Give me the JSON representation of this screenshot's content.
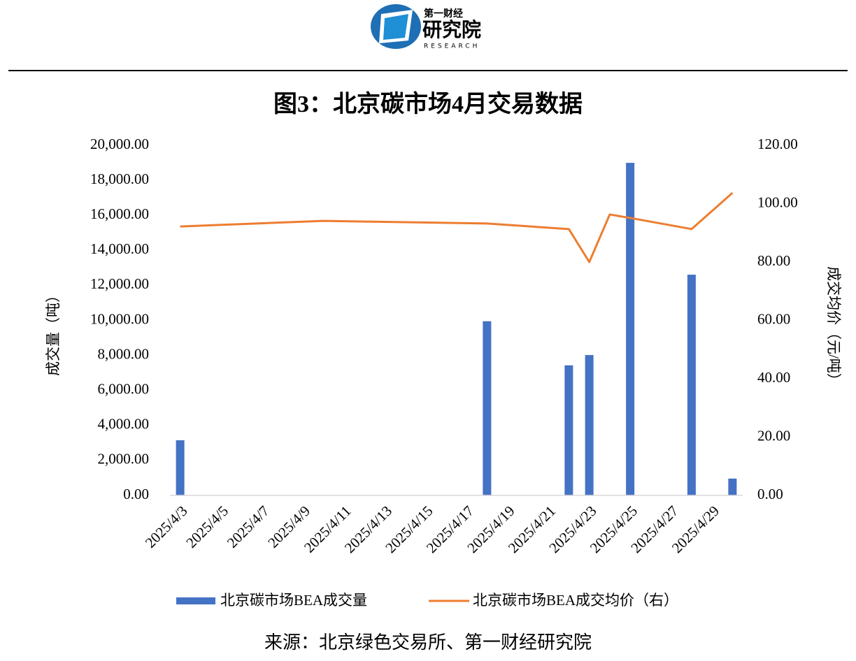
{
  "logo": {
    "top": "第一财经",
    "main": "研究院",
    "sub": "RESEARCH"
  },
  "chart_data": {
    "type": "bar-line",
    "title": "图3：北京碳市场4月交易数据",
    "y_label": "成交量（吨）",
    "y2_label": "成交均价（元/吨）",
    "source": "来源：北京绿色交易所、第一财经研究院",
    "categories": [
      "2025/4/3",
      null,
      "2025/4/5",
      null,
      "2025/4/7",
      null,
      "2025/4/9",
      null,
      "2025/4/11",
      null,
      "2025/4/13",
      null,
      "2025/4/15",
      null,
      "2025/4/17",
      null,
      "2025/4/19",
      null,
      "2025/4/21",
      null,
      "2025/4/23",
      null,
      "2025/4/25",
      null,
      "2025/4/27",
      null,
      "2025/4/29",
      null
    ],
    "series": [
      {
        "name": "北京碳市场BEA成交量",
        "color": "#4472c4",
        "type": "bar",
        "values": [
          3150,
          null,
          null,
          null,
          null,
          null,
          null,
          null,
          null,
          null,
          null,
          null,
          null,
          null,
          null,
          9950,
          null,
          null,
          null,
          7430,
          8020,
          null,
          19000,
          null,
          null,
          12610,
          null,
          960
        ]
      },
      {
        "name": "北京碳市场BEA成交均价（右）",
        "color": "#ed7d31",
        "type": "line",
        "axis": "y2",
        "values": [
          92.2,
          null,
          null,
          null,
          null,
          null,
          null,
          94.1,
          null,
          null,
          null,
          null,
          null,
          null,
          null,
          93.2,
          null,
          null,
          null,
          91.3,
          80,
          96.3,
          95.1,
          null,
          null,
          91.3,
          null,
          103.7
        ]
      }
    ],
    "connect_gaps": true,
    "ylim": [
      0,
      20000
    ],
    "yticks": [
      {
        "value": 0,
        "label": "0.00"
      },
      {
        "value": 2000,
        "label": "2,000.00"
      },
      {
        "value": 4000,
        "label": "4,000.00"
      },
      {
        "value": 6000,
        "label": "6,000.00"
      },
      {
        "value": 8000,
        "label": "8,000.00"
      },
      {
        "value": 10000,
        "label": "10,000.00"
      },
      {
        "value": 12000,
        "label": "12,000.00"
      },
      {
        "value": 14000,
        "label": "14,000.00"
      },
      {
        "value": 16000,
        "label": "16,000.00"
      },
      {
        "value": 18000,
        "label": "18,000.00"
      },
      {
        "value": 20000,
        "label": "20,000.00"
      }
    ],
    "y2lim": [
      0,
      120
    ],
    "y2ticks": [
      {
        "value": 0,
        "label": "0.00"
      },
      {
        "value": 20,
        "label": "20.00"
      },
      {
        "value": 40,
        "label": "40.00"
      },
      {
        "value": 60,
        "label": "60.00"
      },
      {
        "value": 80,
        "label": "80.00"
      },
      {
        "value": 100,
        "label": "100.00"
      },
      {
        "value": 120,
        "label": "120.00"
      }
    ],
    "grid": false,
    "legend": "bottom"
  }
}
